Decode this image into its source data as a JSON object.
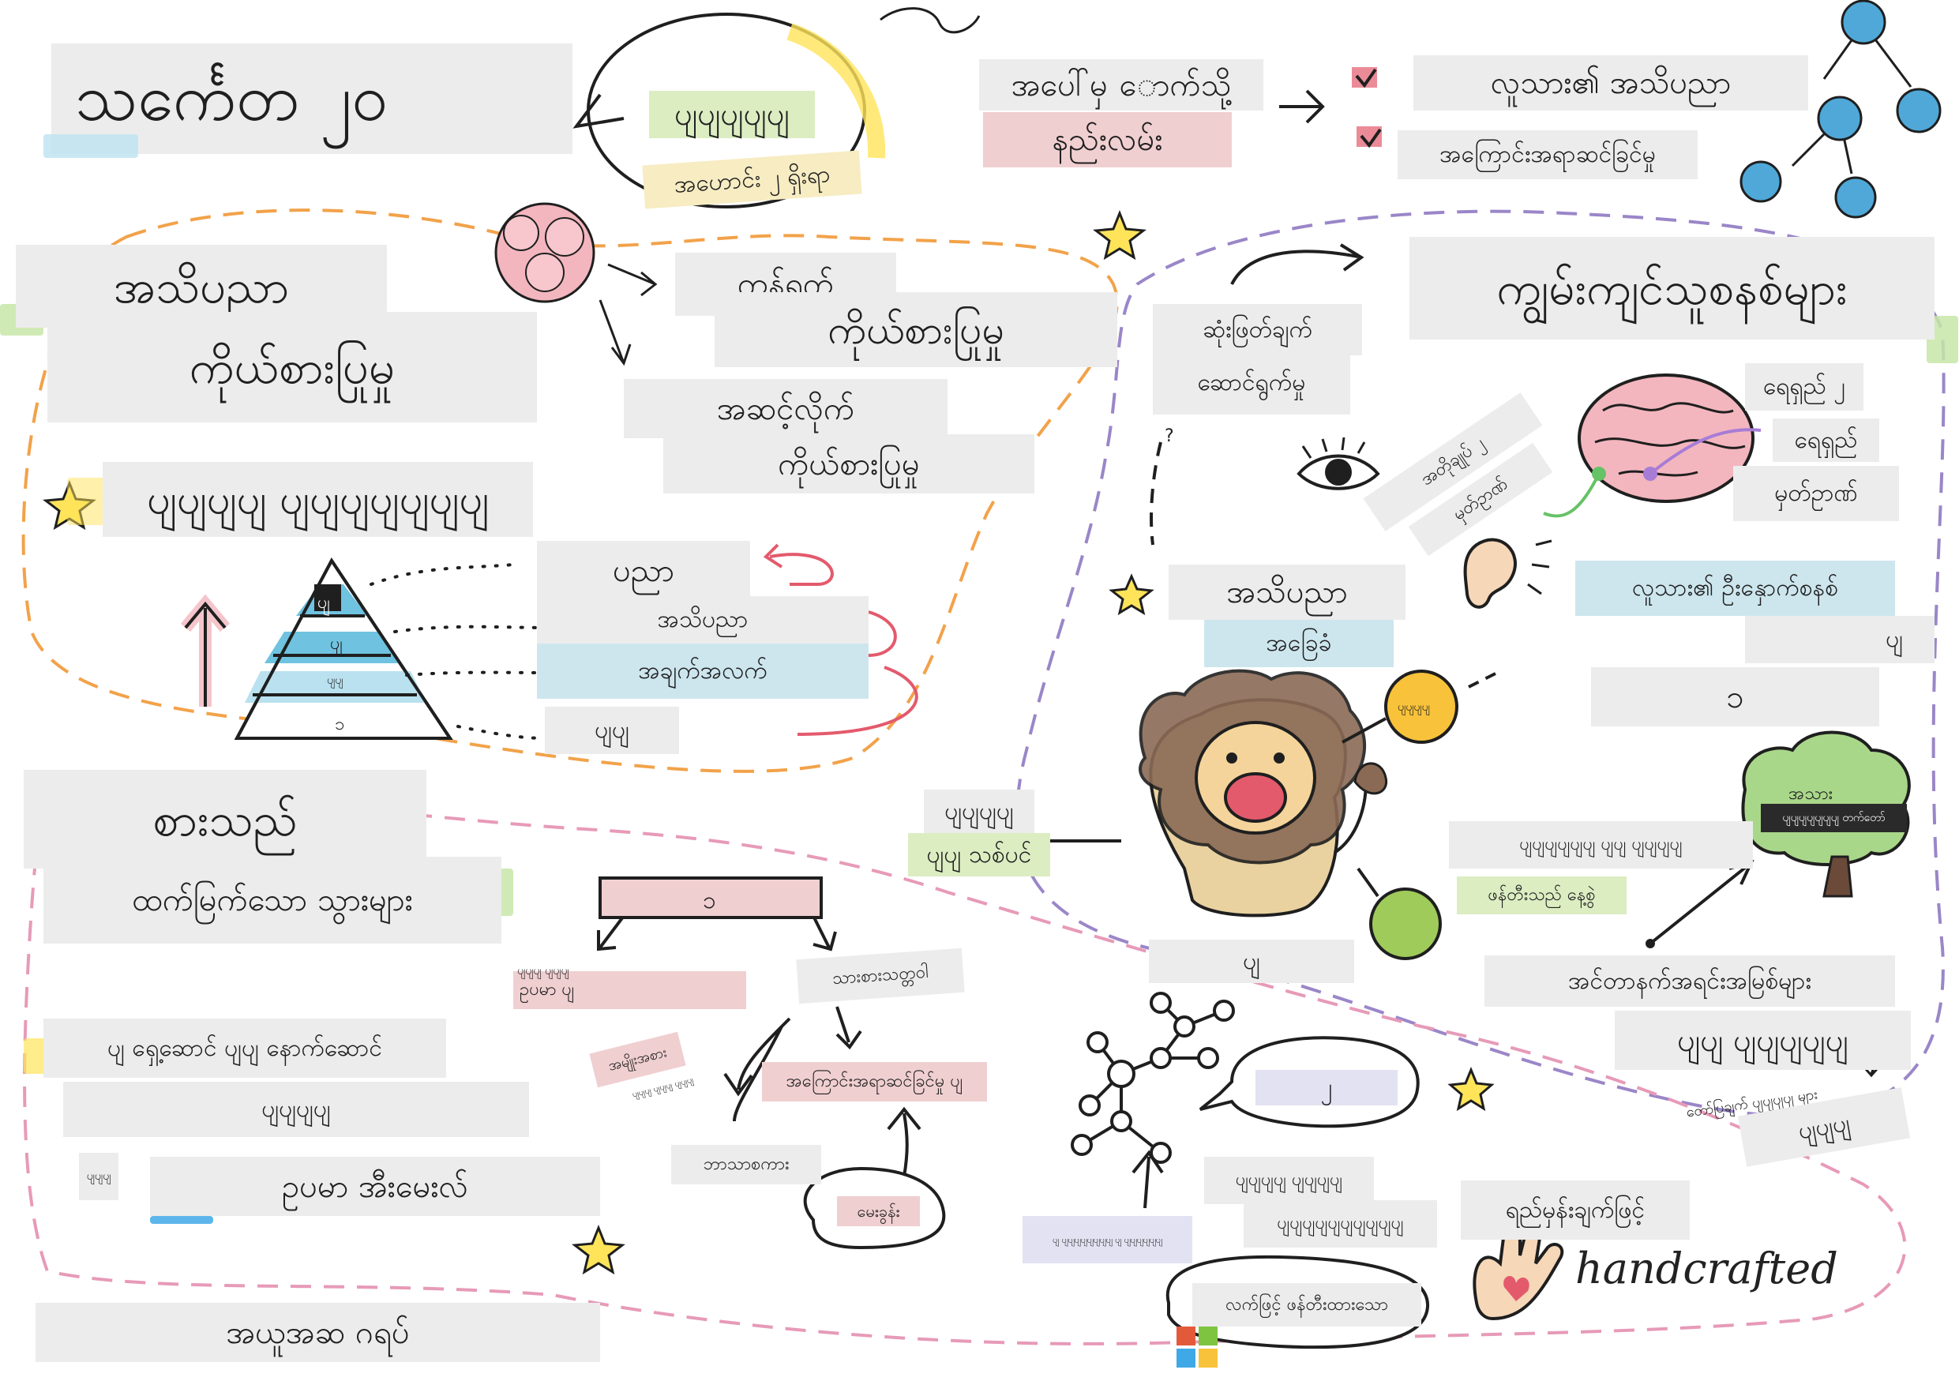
{
  "colors": {
    "orange_path": "#f2a24a",
    "purple_path": "#9a86c8",
    "pink_path": "#e79ab8",
    "teal": "#3fb6c9",
    "sky_node": "#4fa8d8",
    "star_fill": "#ffe45a"
  },
  "title": "သင်္ကေတ ၂၀",
  "badge": {
    "top": "ပျပျပျပျပျ",
    "bottom": "အဟောင်း ၂ ရှိးရာ"
  },
  "flow": {
    "line1": "အပေါ်မှ ောက်သို့",
    "line2": "နည်းလမ်း",
    "check1": "လူသား၏ အသိပညာ",
    "check2": "အကြောင်းအရာဆင်ခြင်မှု"
  },
  "knowledge": {
    "title1": "အသိပညာ",
    "title2": "ကိုယ်စားပြုမှု",
    "right1a": "ကွန်ရက်",
    "right1b": "ကိုယ်စားပြုမှု",
    "right2a": "အဆင့်လိုက်",
    "right2b": "ကိုယ်စားပြုမှု"
  },
  "dikw": {
    "title": "ပျပျပျပျ ပျပျပျပျပျပျပျ",
    "levels": [
      "ပညာ",
      "အသိပညာ",
      "အချက်အလက်",
      "ပျပျ"
    ],
    "tri_labels": [
      "ပျ",
      "ပျ",
      "ပျပျ",
      "၁"
    ]
  },
  "expert": {
    "title": "ကျွမ်းကျင်သူစနစ်များ",
    "decision_a": "ဆုံးဖြတ်ချက်",
    "decision_b": "ဆောင်ရွက်မှု",
    "diag_a": "အတိုချုပ် ၂",
    "diag_b": "မှတ်ဥာဏ်",
    "right_a": "ရေရှည် ၂",
    "right_b": "ရေရှည်",
    "right_c": "မှတ်ဥာဏ်",
    "kb_a": "အသိပညာ",
    "kb_b": "အခြေခံ",
    "human": "လူသား၏ ဦးနှောက်စနစ်",
    "box1": "ပျ",
    "box2": "၁",
    "question": "?"
  },
  "lion": {
    "left_a": "ပျပျပျပျ",
    "left_b": "ပျပျ သစ်ပင်",
    "sun_label": "ပျပျပျပျ",
    "bottom": "ပျ",
    "note_a": "ပျပျပျပျပျပျ ပျပျ ပျပျပျပျ",
    "note_b": "ဖန်တီးသည် နေ့စွဲ"
  },
  "tree": {
    "top": "အသား",
    "dark": "ပျပျပျပျပျပျပျ တက်တော်",
    "arrow_label": "အင်တာနက်အရင်းအမြစ်များ",
    "box": "ပျပျ ပျပျပျပျပျ",
    "small": "တော်ပြချက် ပျပျပျပျ များ",
    "box2": "ပျပျပျ"
  },
  "ontology": {
    "title1": "စားသည်",
    "title2": "ထက်မြက်သော သွားများ",
    "line1": "ပျ ရှေ့ဆောင် ပျပျ နောက်ဆောင်",
    "line2": "ပျပျပျပျ",
    "line3": "ဥပမာ အီးမေးလ်",
    "small": "ပျပျပျ"
  },
  "tree_diagram": {
    "root": "၁",
    "left": "ဥပမာ ပျ",
    "left_small": "ပျပျပျ ပျပျပျ",
    "mid": "သားစားသတ္တဝါ",
    "tag1": "အမျိုးအစား",
    "tag1_small": "ပျပျပျ ပျပျပျ ပျပျပျ",
    "tag2": "အကြောင်းအရာဆင်ခြင်မှု ပျ",
    "lang": "ဘာသာစကား",
    "bubble": "မေးခွန်း"
  },
  "network": {
    "bubble": "၂",
    "a": "ပျပျပျပျ ပျပျပျပျ",
    "b": "ပျပျပျပျပျပျပျပျပျပျ",
    "small": "ပျ ပျပျပျပျပျပျပျပျ ပျ ပျပျပျပျပျပျ",
    "handmade": "လက်ဖြင့် ဖန်တီးထားသော"
  },
  "footer": {
    "prompt": "ရည်မှန်းချက်ဖြင့်",
    "handcrafted": "handcrafted",
    "group": "အယူအဆ ဂရပ်"
  }
}
